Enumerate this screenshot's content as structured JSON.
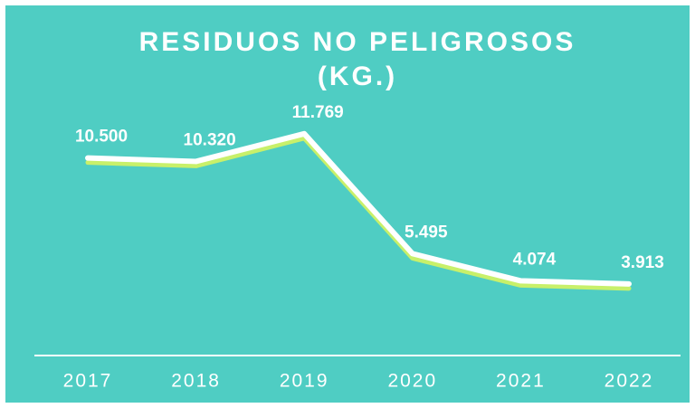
{
  "chart_data": {
    "type": "line",
    "title": [
      "RESIDUOS NO PELIGROSOS",
      "(KG.)"
    ],
    "categories": [
      "2017",
      "2018",
      "2019",
      "2020",
      "2021",
      "2022"
    ],
    "series": [
      {
        "color": "#ffffff",
        "values": [
          10500,
          10320,
          11769,
          5495,
          4074,
          3913
        ],
        "value_labels": [
          "10.500",
          "10.320",
          "11.769",
          "5.495",
          "4.074",
          "3.913"
        ]
      }
    ]
  }
}
